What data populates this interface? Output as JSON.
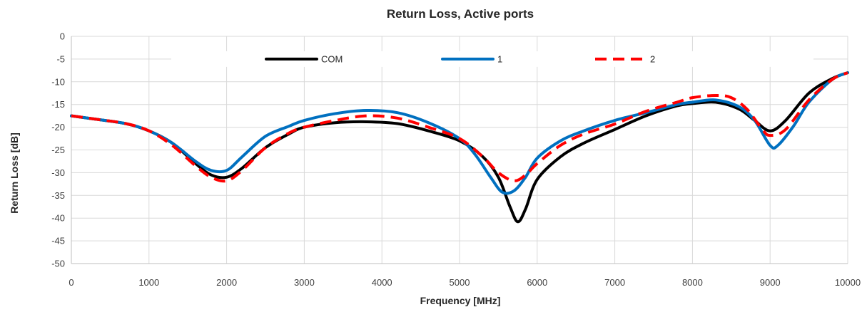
{
  "chart_data": {
    "type": "line",
    "title": "Return Loss, Active ports",
    "xlabel": "Frequency [MHz]",
    "ylabel": "Return Loss [dB]",
    "xlim": [
      0,
      10000
    ],
    "ylim": [
      -50,
      0
    ],
    "xticks": [
      0,
      1000,
      2000,
      3000,
      4000,
      5000,
      6000,
      7000,
      8000,
      9000,
      10000
    ],
    "yticks": [
      0,
      -5,
      -10,
      -15,
      -20,
      -25,
      -30,
      -35,
      -40,
      -45,
      -50
    ],
    "grid": true,
    "legend_position": "top",
    "series": [
      {
        "name": "COM",
        "color": "#000000",
        "dash": "solid",
        "x": [
          0,
          300,
          700,
          1000,
          1300,
          1600,
          1800,
          2000,
          2200,
          2500,
          2800,
          3000,
          3400,
          3800,
          4200,
          4600,
          5000,
          5300,
          5500,
          5650,
          5750,
          5850,
          6000,
          6300,
          6600,
          7000,
          7400,
          7800,
          8000,
          8300,
          8600,
          8800,
          9000,
          9200,
          9500,
          9800,
          10000
        ],
        "y": [
          -17.5,
          -18.2,
          -19.2,
          -20.8,
          -23.5,
          -28,
          -30.5,
          -31,
          -29,
          -24.5,
          -21.5,
          -20,
          -19,
          -18.8,
          -19.2,
          -20.8,
          -23,
          -26.5,
          -31,
          -37.5,
          -40.8,
          -38,
          -31.5,
          -26.5,
          -23.5,
          -20.5,
          -17.5,
          -15.3,
          -14.8,
          -14.5,
          -16,
          -18.5,
          -20.8,
          -18.5,
          -12.5,
          -9.3,
          -8
        ]
      },
      {
        "name": "1",
        "color": "#0070C0",
        "dash": "solid",
        "x": [
          0,
          300,
          700,
          1000,
          1300,
          1600,
          1800,
          2000,
          2200,
          2500,
          2800,
          3000,
          3400,
          3800,
          4200,
          4600,
          5000,
          5200,
          5400,
          5550,
          5700,
          5850,
          6000,
          6300,
          6600,
          7000,
          7400,
          7800,
          8000,
          8300,
          8600,
          8800,
          9000,
          9100,
          9300,
          9500,
          9800,
          10000
        ],
        "y": [
          -17.5,
          -18.2,
          -19.2,
          -20.8,
          -23.5,
          -27.5,
          -29.5,
          -29.5,
          -26.5,
          -22,
          -19.8,
          -18.5,
          -17,
          -16.3,
          -16.8,
          -19,
          -22.5,
          -26,
          -31,
          -34.3,
          -34,
          -31,
          -26.8,
          -23,
          -20.8,
          -18.5,
          -16.8,
          -15,
          -14.5,
          -14,
          -15.5,
          -18.5,
          -24,
          -24,
          -19.8,
          -14.5,
          -9.5,
          -8
        ]
      },
      {
        "name": "2",
        "color": "#FF0000",
        "dash": "dashed",
        "x": [
          0,
          300,
          700,
          1000,
          1300,
          1600,
          1800,
          2000,
          2200,
          2500,
          2800,
          3000,
          3400,
          3800,
          4200,
          4600,
          5000,
          5300,
          5500,
          5700,
          5850,
          6000,
          6300,
          6600,
          7000,
          7400,
          7800,
          8000,
          8300,
          8500,
          8700,
          8900,
          9000,
          9200,
          9500,
          9800,
          10000
        ],
        "y": [
          -17.5,
          -18.2,
          -19.2,
          -20.8,
          -24,
          -28.5,
          -31,
          -31.8,
          -29.5,
          -24.5,
          -21.3,
          -20,
          -18.5,
          -17.5,
          -18,
          -20,
          -22.5,
          -26.5,
          -30,
          -31.8,
          -30.5,
          -28,
          -24,
          -21.5,
          -19.3,
          -16.5,
          -14.5,
          -13.5,
          -13,
          -13.5,
          -16,
          -20.5,
          -21.8,
          -20.5,
          -14,
          -9.5,
          -8
        ]
      }
    ]
  }
}
